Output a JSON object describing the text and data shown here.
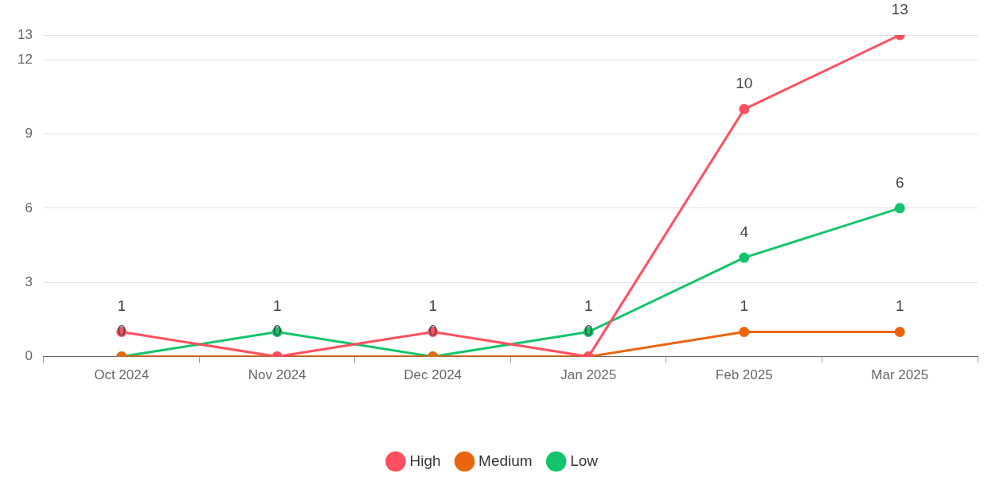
{
  "chart_data": {
    "type": "line",
    "categories": [
      "Oct 2024",
      "Nov 2024",
      "Dec 2024",
      "Jan 2025",
      "Feb 2025",
      "Mar 2025"
    ],
    "series": [
      {
        "name": "High",
        "color": "#ff5060",
        "values": [
          1,
          0,
          1,
          0,
          10,
          13
        ],
        "value_labels": [
          "1",
          "0",
          "1",
          "0",
          "10",
          "13"
        ]
      },
      {
        "name": "Medium",
        "color": "#ea6510",
        "values": [
          0,
          0,
          0,
          0,
          1,
          1
        ],
        "value_labels": [
          "0",
          null,
          "0",
          null,
          "1",
          "1"
        ]
      },
      {
        "name": "Low",
        "color": "#14c46c",
        "values": [
          0,
          1,
          0,
          1,
          4,
          6
        ],
        "value_labels": [
          null,
          "1",
          null,
          "1",
          "4",
          "6"
        ]
      }
    ],
    "ylim": [
      0,
      13
    ],
    "yticks": [
      0,
      3,
      6,
      9,
      12,
      13
    ],
    "grid": "y",
    "legend": "bottom",
    "marker": "circle",
    "line_style": "solid"
  }
}
